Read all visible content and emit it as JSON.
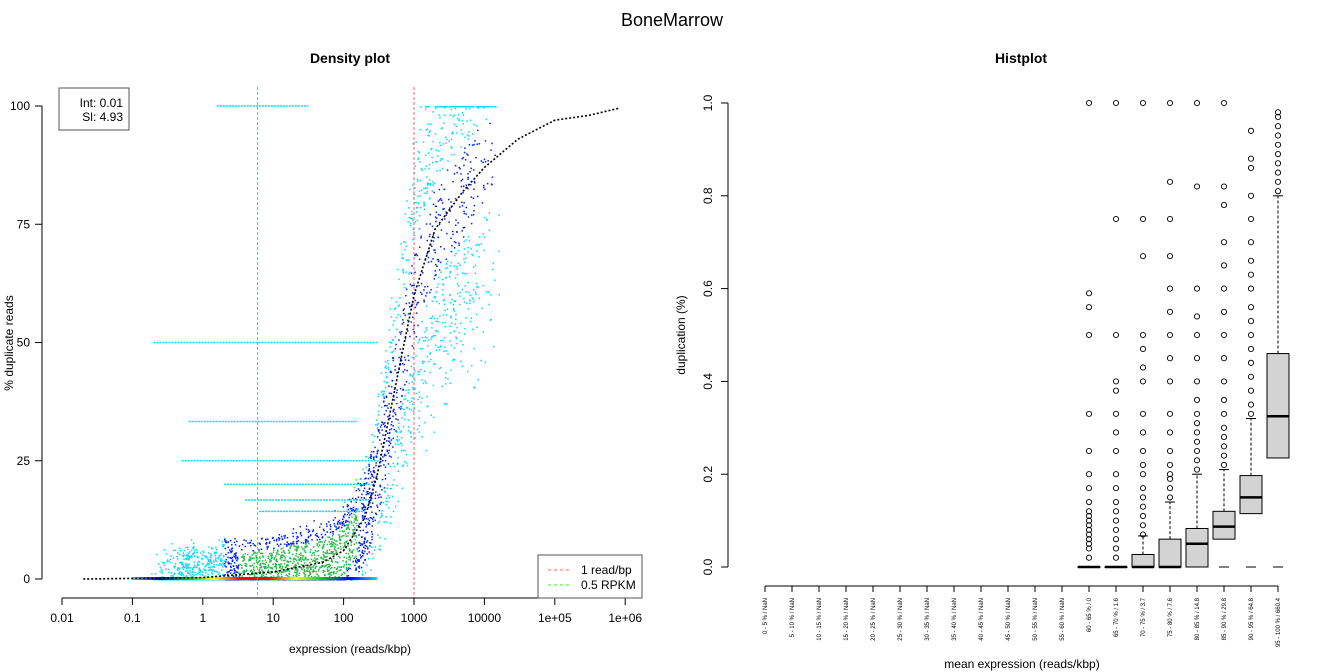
{
  "title": "BoneMarrow",
  "chart_data": [
    {
      "type": "scatter",
      "title": "Density plot",
      "xlabel": "expression (reads/kbp)",
      "ylabel": "% duplicate reads",
      "xscale": "log",
      "xlim": [
        0.01,
        1000000
      ],
      "ylim": [
        0,
        100
      ],
      "xticks": [
        {
          "v": 0.01,
          "l": "0.01"
        },
        {
          "v": 0.1,
          "l": "0.1"
        },
        {
          "v": 1,
          "l": "1"
        },
        {
          "v": 10,
          "l": "10"
        },
        {
          "v": 100,
          "l": "100"
        },
        {
          "v": 1000,
          "l": "1000"
        },
        {
          "v": 10000,
          "l": "10000"
        },
        {
          "v": 100000,
          "l": "1e+05"
        },
        {
          "v": 1000000,
          "l": "1e+06"
        }
      ],
      "yticks": [
        {
          "v": 0,
          "l": "0"
        },
        {
          "v": 25,
          "l": "25"
        },
        {
          "v": 50,
          "l": "50"
        },
        {
          "v": 75,
          "l": "75"
        },
        {
          "v": 100,
          "l": "100"
        }
      ],
      "fit_box": {
        "int_label": "Int: 0.01",
        "sl_label": "Sl: 4.93"
      },
      "fit_curve": [
        [
          0.02,
          0
        ],
        [
          1,
          0.3
        ],
        [
          10,
          1.5
        ],
        [
          50,
          3.5
        ],
        [
          100,
          6
        ],
        [
          200,
          13
        ],
        [
          300,
          22
        ],
        [
          500,
          38
        ],
        [
          1000,
          60
        ],
        [
          2000,
          74
        ],
        [
          5000,
          82
        ],
        [
          10000,
          87
        ],
        [
          30000,
          93
        ],
        [
          100000,
          97
        ],
        [
          300000,
          98
        ],
        [
          800000,
          99.5
        ]
      ],
      "vlines": [
        {
          "x": 1000,
          "label": "1 read/bp",
          "color": "#ff6666"
        },
        {
          "x": 6,
          "label": "0.5 RPKM",
          "color": "#33ee33"
        }
      ],
      "legend_position": "bottom-right"
    },
    {
      "type": "box",
      "title": "Histplot",
      "xlabel": "mean expression (reads/kbp)",
      "ylabel": "duplication (%)",
      "ylim": [
        0,
        1
      ],
      "yticks": [
        {
          "v": 0,
          "l": "0.0"
        },
        {
          "v": 0.2,
          "l": "0.2"
        },
        {
          "v": 0.4,
          "l": "0.4"
        },
        {
          "v": 0.6,
          "l": "0.6"
        },
        {
          "v": 0.8,
          "l": "0.8"
        },
        {
          "v": 1,
          "l": "1.0"
        }
      ],
      "categories": [
        "0 - 5 % / NaN",
        "5 - 10 % / NaN",
        "10 - 15 % / NaN",
        "15 - 20 % / NaN",
        "20 - 25 % / NaN",
        "25 - 30 % / NaN",
        "30 - 35 % / NaN",
        "35 - 40 % / NaN",
        "40 - 45 % / NaN",
        "45 - 50 % / NaN",
        "50 - 55 % / NaN",
        "55 - 60 % / NaN",
        "60 - 65 % / 0",
        "65 - 70 % / 1.6",
        "70 - 75 % / 3.7",
        "75 - 80 % / 7.6",
        "80 - 85 % / 14.8",
        "85 - 90 % / 29.8",
        "90 - 95 % / 64.8",
        "95 - 100 % / 660.4"
      ],
      "boxes": [
        null,
        null,
        null,
        null,
        null,
        null,
        null,
        null,
        null,
        null,
        null,
        null,
        {
          "min": 0,
          "q1": 0,
          "median": 0,
          "q3": 0,
          "max": 0,
          "outliers": [
            0.02,
            0.04,
            0.05,
            0.06,
            0.07,
            0.08,
            0.09,
            0.1,
            0.11,
            0.12,
            0.14,
            0.17,
            0.2,
            0.25,
            0.33,
            0.5,
            0.56,
            0.59,
            1.0
          ]
        },
        {
          "min": 0,
          "q1": 0,
          "median": 0,
          "q3": 0,
          "max": 0,
          "outliers": [
            0.02,
            0.04,
            0.06,
            0.08,
            0.1,
            0.12,
            0.14,
            0.17,
            0.2,
            0.25,
            0.29,
            0.33,
            0.38,
            0.4,
            0.5,
            0.75,
            1.0
          ]
        },
        {
          "min": 0,
          "q1": 0,
          "median": 0,
          "q3": 0.027,
          "max": 0.067,
          "outliers": [
            0.07,
            0.09,
            0.11,
            0.13,
            0.15,
            0.17,
            0.2,
            0.22,
            0.25,
            0.29,
            0.33,
            0.4,
            0.43,
            0.47,
            0.5,
            0.67,
            0.75,
            1.0
          ]
        },
        {
          "min": 0,
          "q1": 0,
          "median": 0,
          "q3": 0.06,
          "max": 0.14,
          "outliers": [
            0.15,
            0.17,
            0.19,
            0.2,
            0.22,
            0.25,
            0.29,
            0.33,
            0.4,
            0.45,
            0.5,
            0.55,
            0.6,
            0.67,
            0.75,
            0.83,
            1.0
          ]
        },
        {
          "min": 0,
          "q1": 0,
          "median": 0.05,
          "q3": 0.083,
          "max": 0.2,
          "outliers": [
            0.21,
            0.23,
            0.25,
            0.27,
            0.29,
            0.31,
            0.33,
            0.36,
            0.4,
            0.45,
            0.5,
            0.54,
            0.6,
            0.82,
            1.0
          ]
        },
        {
          "min": 0,
          "q1": 0.06,
          "median": 0.087,
          "q3": 0.12,
          "max": 0.21,
          "outliers": [
            0.22,
            0.24,
            0.26,
            0.28,
            0.3,
            0.33,
            0.36,
            0.4,
            0.45,
            0.5,
            0.55,
            0.6,
            0.65,
            0.7,
            0.78,
            0.82,
            1.0
          ]
        },
        {
          "min": 0,
          "q1": 0.115,
          "median": 0.15,
          "q3": 0.197,
          "max": 0.32,
          "outliers": [
            0.33,
            0.35,
            0.38,
            0.41,
            0.44,
            0.47,
            0.5,
            0.53,
            0.56,
            0.6,
            0.63,
            0.66,
            0.7,
            0.75,
            0.8,
            0.86,
            0.88,
            0.94
          ]
        },
        {
          "min": 0,
          "q1": 0.235,
          "median": 0.325,
          "q3": 0.46,
          "max": 0.8,
          "outliers": [
            0.81,
            0.83,
            0.85,
            0.87,
            0.89,
            0.91,
            0.93,
            0.95,
            0.97,
            0.98
          ]
        }
      ]
    }
  ]
}
